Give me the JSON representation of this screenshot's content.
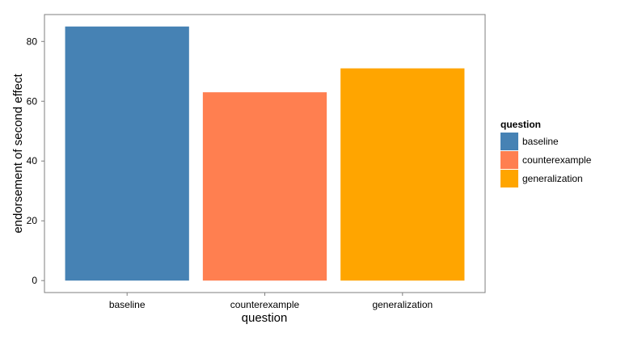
{
  "chart_data": {
    "type": "bar",
    "title": "",
    "xlabel": "question",
    "ylabel": "endorsement of second effect",
    "categories": [
      "baseline",
      "counterexample",
      "generalization"
    ],
    "values": [
      85,
      63,
      71
    ],
    "colors": [
      "#4682B4",
      "#FF7F50",
      "#FFA500"
    ],
    "ylim": [
      -4,
      89
    ],
    "yticks": [
      0,
      20,
      40,
      60,
      80
    ],
    "grid": false,
    "legend": {
      "title": "question",
      "placement": "right",
      "entries": [
        "baseline",
        "counterexample",
        "generalization"
      ]
    }
  }
}
